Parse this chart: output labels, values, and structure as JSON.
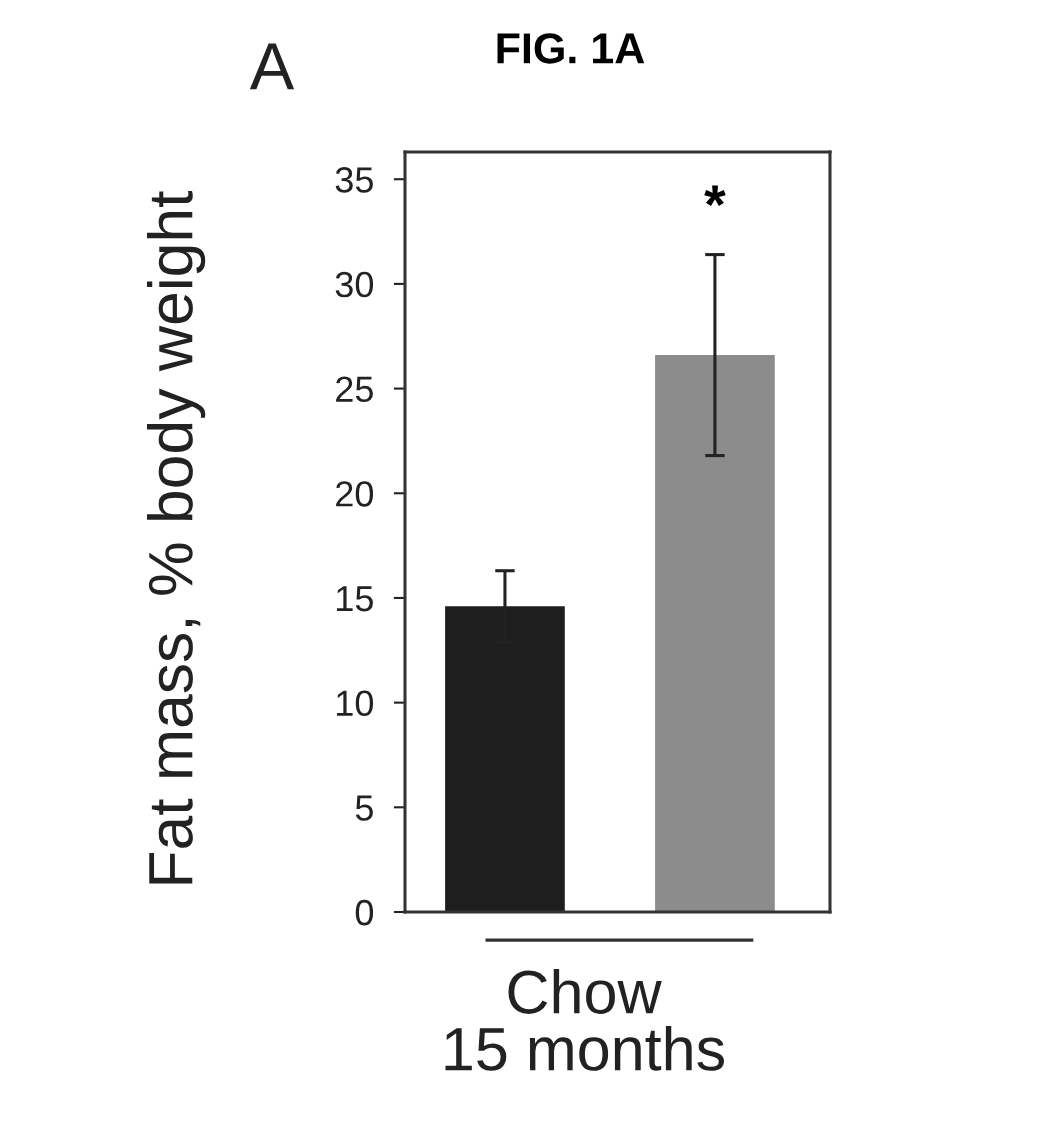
{
  "chart_data": {
    "type": "bar",
    "title": "FIG. 1A",
    "ylabel": "Fat mass, % body weight",
    "xlabel": "Chow\n15 months",
    "categories": [
      null,
      null
    ],
    "values": [
      14.6,
      26.6
    ],
    "colors": [
      "#1e1e1e",
      "#8c8c8c"
    ],
    "errors": [
      1.7,
      4.8
    ],
    "value_labels": [
      null,
      "*"
    ],
    "ylim": [
      0,
      36.3
    ],
    "yticks": [
      0,
      5,
      10,
      15,
      20,
      25,
      30,
      35
    ],
    "annotations": [
      "A"
    ]
  }
}
